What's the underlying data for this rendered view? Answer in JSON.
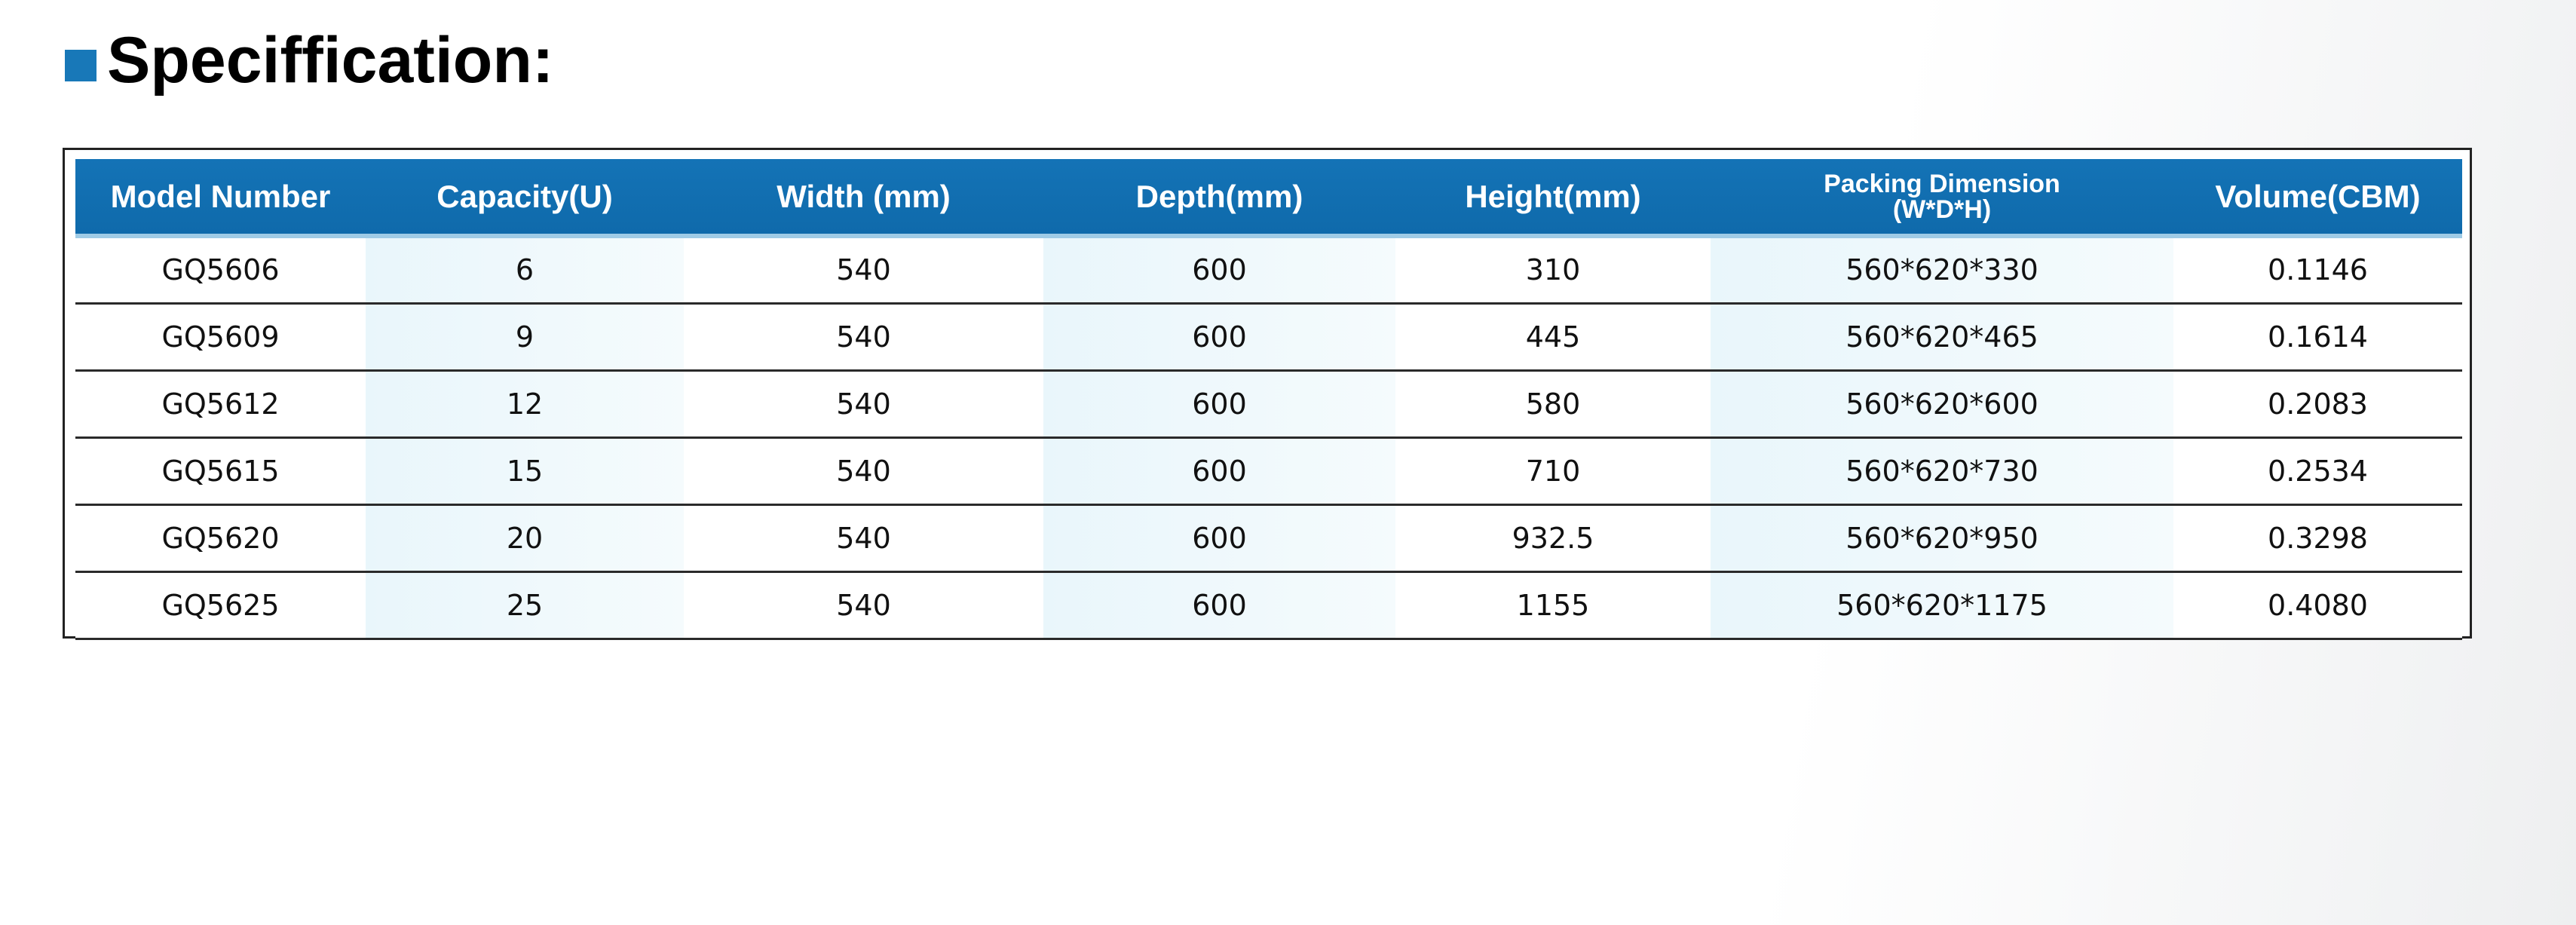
{
  "title": "Speciffication:",
  "table": {
    "headers": [
      {
        "main": "Model Number"
      },
      {
        "main": "Capacity(U)"
      },
      {
        "main": "Width (mm)"
      },
      {
        "main": "Depth(mm)"
      },
      {
        "main": "Height(mm)"
      },
      {
        "main": "Packing Dimension",
        "sub": "(W*D*H)"
      },
      {
        "main": "Volume(CBM)"
      }
    ],
    "rows": [
      [
        "GQ5606",
        "6",
        "540",
        "600",
        "310",
        "560*620*330",
        "0.1146"
      ],
      [
        "GQ5609",
        "9",
        "540",
        "600",
        "445",
        "560*620*465",
        "0.1614"
      ],
      [
        "GQ5612",
        "12",
        "540",
        "600",
        "580",
        "560*620*600",
        "0.2083"
      ],
      [
        "GQ5615",
        "15",
        "540",
        "600",
        "710",
        "560*620*730",
        "0.2534"
      ],
      [
        "GQ5620",
        "20",
        "540",
        "600",
        "932.5",
        "560*620*950",
        "0.3298"
      ],
      [
        "GQ5625",
        "25",
        "540",
        "600",
        "1155",
        "560*620*1175",
        "0.4080"
      ]
    ]
  },
  "colors": {
    "header_bg": "#1473b6",
    "marker": "#1878b8",
    "shade": "#e9f6fb"
  }
}
